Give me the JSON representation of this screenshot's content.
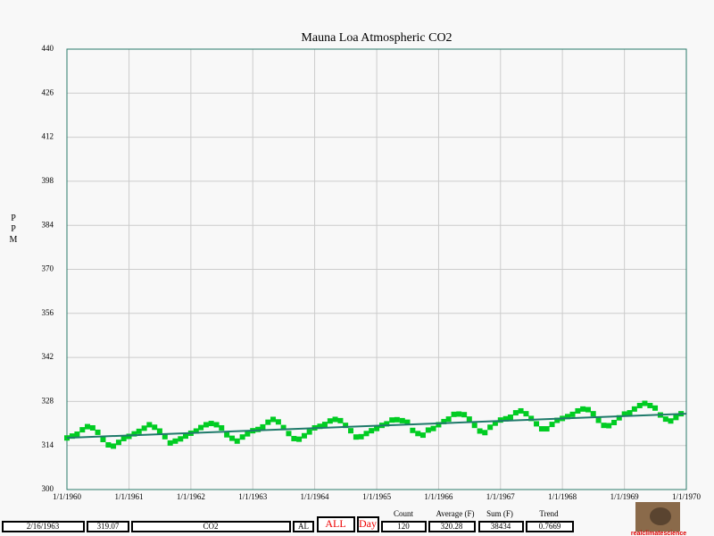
{
  "chart_data": {
    "type": "scatter",
    "title": "Mauna Loa Atmospheric CO2",
    "ylabel": "PPM",
    "color": "#00cc22",
    "trend_color": "#1f7a6a",
    "grid": true,
    "xlim": [
      "1/1/1960",
      "1/1/1970"
    ],
    "xticks": [
      "1/1/1960",
      "1/1/1961",
      "1/1/1962",
      "1/1/1963",
      "1/1/1964",
      "1/1/1965",
      "1/1/1966",
      "1/1/1967",
      "1/1/1968",
      "1/1/1969",
      "1/1/1970"
    ],
    "ylim": [
      300,
      440
    ],
    "yticks": [
      300,
      314,
      328,
      342,
      356,
      370,
      384,
      398,
      412,
      426,
      440
    ],
    "x": [
      "1/1/1960",
      "2/1/1960",
      "3/1/1960",
      "4/1/1960",
      "5/1/1960",
      "6/1/1960",
      "7/1/1960",
      "8/1/1960",
      "9/1/1960",
      "10/1/1960",
      "11/1/1960",
      "12/1/1960",
      "1/1/1961",
      "2/1/1961",
      "3/1/1961",
      "4/1/1961",
      "5/1/1961",
      "6/1/1961",
      "7/1/1961",
      "8/1/1961",
      "9/1/1961",
      "10/1/1961",
      "11/1/1961",
      "12/1/1961",
      "1/1/1962",
      "2/1/1962",
      "3/1/1962",
      "4/1/1962",
      "5/1/1962",
      "6/1/1962",
      "7/1/1962",
      "8/1/1962",
      "9/1/1962",
      "10/1/1962",
      "11/1/1962",
      "12/1/1962",
      "1/1/1963",
      "2/1/1963",
      "3/1/1963",
      "4/1/1963",
      "5/1/1963",
      "6/1/1963",
      "7/1/1963",
      "8/1/1963",
      "9/1/1963",
      "10/1/1963",
      "11/1/1963",
      "12/1/1963",
      "1/1/1964",
      "2/1/1964",
      "3/1/1964",
      "4/1/1964",
      "5/1/1964",
      "6/1/1964",
      "7/1/1964",
      "8/1/1964",
      "9/1/1964",
      "10/1/1964",
      "11/1/1964",
      "12/1/1964",
      "1/1/1965",
      "2/1/1965",
      "3/1/1965",
      "4/1/1965",
      "5/1/1965",
      "6/1/1965",
      "7/1/1965",
      "8/1/1965",
      "9/1/1965",
      "10/1/1965",
      "11/1/1965",
      "12/1/1965",
      "1/1/1966",
      "2/1/1966",
      "3/1/1966",
      "4/1/1966",
      "5/1/1966",
      "6/1/1966",
      "7/1/1966",
      "8/1/1966",
      "9/1/1966",
      "10/1/1966",
      "11/1/1966",
      "12/1/1966",
      "1/1/1967",
      "2/1/1967",
      "3/1/1967",
      "4/1/1967",
      "5/1/1967",
      "6/1/1967",
      "7/1/1967",
      "8/1/1967",
      "9/1/1967",
      "10/1/1967",
      "11/1/1967",
      "12/1/1967",
      "1/1/1968",
      "2/1/1968",
      "3/1/1968",
      "4/1/1968",
      "5/1/1968",
      "6/1/1968",
      "7/1/1968",
      "8/1/1968",
      "9/1/1968",
      "10/1/1968",
      "11/1/1968",
      "12/1/1968",
      "1/1/1969",
      "2/1/1969",
      "3/1/1969",
      "4/1/1969",
      "5/1/1969",
      "6/1/1969",
      "7/1/1969",
      "8/1/1969",
      "9/1/1969",
      "10/1/1969",
      "11/1/1969",
      "12/1/1969"
    ],
    "values": [
      316.4,
      317.0,
      317.6,
      319.0,
      320.0,
      319.6,
      318.2,
      315.9,
      314.2,
      313.8,
      315.0,
      316.2,
      316.9,
      317.7,
      318.5,
      319.5,
      320.6,
      319.8,
      318.6,
      316.8,
      314.8,
      315.4,
      316.1,
      317.0,
      317.9,
      318.6,
      319.7,
      320.6,
      321.0,
      320.6,
      319.6,
      317.4,
      316.3,
      315.4,
      316.7,
      317.7,
      318.7,
      319.1,
      319.9,
      321.4,
      322.3,
      321.5,
      319.7,
      317.8,
      316.2,
      316.0,
      317.1,
      318.3,
      319.6,
      320.1,
      320.7,
      321.8,
      322.3,
      321.9,
      320.4,
      318.7,
      316.7,
      316.8,
      317.8,
      318.7,
      319.4,
      320.4,
      320.9,
      322.1,
      322.2,
      321.9,
      321.4,
      318.8,
      317.8,
      317.3,
      318.9,
      319.4,
      320.6,
      321.6,
      322.4,
      323.9,
      324.0,
      323.8,
      322.4,
      320.4,
      318.6,
      318.1,
      319.8,
      321.1,
      322.1,
      322.5,
      323.0,
      324.4,
      325.0,
      324.1,
      322.6,
      320.9,
      319.3,
      319.3,
      320.7,
      322.0,
      322.6,
      323.2,
      323.9,
      325.0,
      325.6,
      325.4,
      324.1,
      322.0,
      320.4,
      320.3,
      321.3,
      322.8,
      324.0,
      324.4,
      325.6,
      326.7,
      327.4,
      326.7,
      325.9,
      323.7,
      322.4,
      321.8,
      322.9,
      324.1
    ]
  },
  "toolbar": {
    "date": "2/16/1963",
    "reading": "319.07",
    "series": "CO2",
    "station": "AL",
    "all_button": "ALL",
    "day_button": "Day",
    "count": {
      "label": "Count",
      "value": 120
    },
    "average": {
      "label": "Average (F)",
      "value": 320.28
    },
    "sum": {
      "label": "Sum (F)",
      "value": 38434
    },
    "trend": {
      "label": "Trend",
      "value": 0.7669
    },
    "logo": "realclimatescience"
  }
}
